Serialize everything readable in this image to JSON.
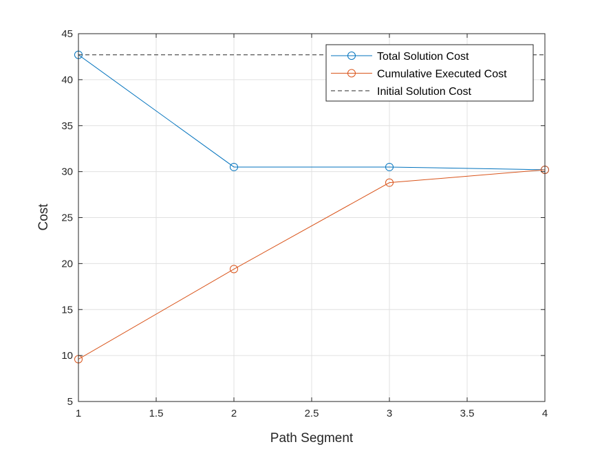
{
  "chart_data": {
    "type": "line",
    "title": "",
    "xlabel": "Path Segment",
    "ylabel": "Cost",
    "xlim": [
      1,
      4
    ],
    "ylim": [
      5,
      45
    ],
    "xticks": [
      1,
      1.5,
      2,
      2.5,
      3,
      3.5,
      4
    ],
    "xtick_labels": [
      "1",
      "1.5",
      "2",
      "2.5",
      "3",
      "3.5",
      "4"
    ],
    "yticks": [
      5,
      10,
      15,
      20,
      25,
      30,
      35,
      40,
      45
    ],
    "ytick_labels": [
      "5",
      "10",
      "15",
      "20",
      "25",
      "30",
      "35",
      "40",
      "45"
    ],
    "grid": true,
    "legend_position": "top-right",
    "x": [
      1,
      2,
      3,
      4
    ],
    "series": [
      {
        "name": "Total Solution Cost",
        "color": "#0072BD",
        "marker": "circle",
        "linestyle": "solid",
        "values": [
          42.7,
          30.5,
          30.5,
          30.2
        ]
      },
      {
        "name": "Cumulative Executed Cost",
        "color": "#D95319",
        "marker": "circle",
        "linestyle": "solid",
        "values": [
          9.6,
          19.4,
          28.8,
          30.2
        ]
      },
      {
        "name": "Initial Solution Cost",
        "color": "#262626",
        "marker": "none",
        "linestyle": "dashed",
        "values": [
          42.7,
          42.7,
          42.7,
          42.7
        ]
      }
    ]
  }
}
